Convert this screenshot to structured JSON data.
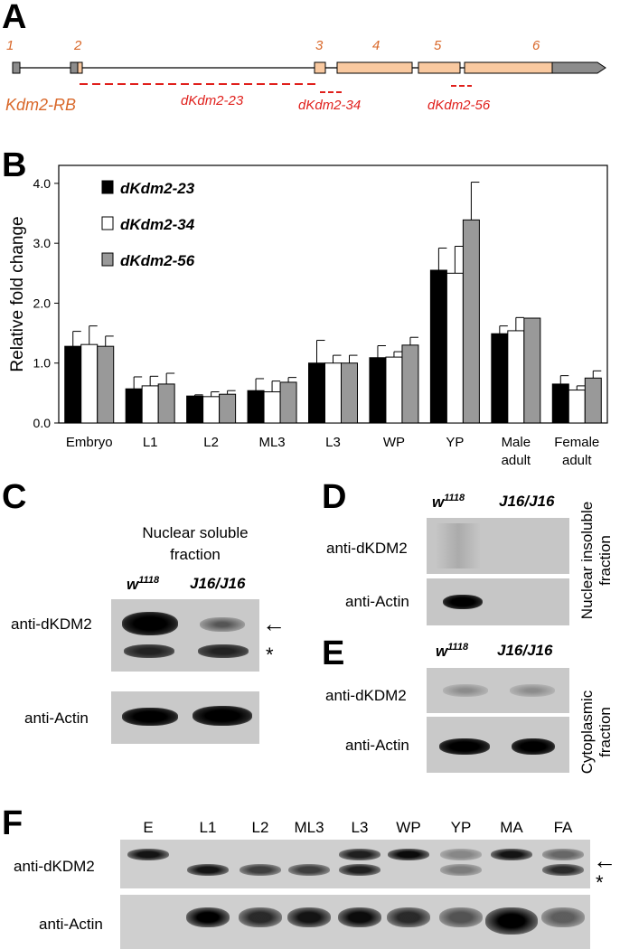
{
  "panels": {
    "A": "A",
    "B": "B",
    "C": "C",
    "D": "D",
    "E": "E",
    "F": "F"
  },
  "panelA": {
    "exon_numbers": [
      "1",
      "2",
      "3",
      "4",
      "5",
      "6"
    ],
    "transcript": "Kdm2-RB",
    "amplicons": [
      "dKdm2-23",
      "dKdm2-34",
      "dKdm2-56"
    ],
    "colors": {
      "exon_coding": "#f9c9a0",
      "exon_utr": "#8c8c8c",
      "amplicon": "#e0201c",
      "label": "#d9682a"
    }
  },
  "chart_data": {
    "type": "bar",
    "ylabel": "Relative fold change",
    "xlabel": "",
    "ylim": [
      0,
      4.3
    ],
    "yticks": [
      "0.0",
      "1.0",
      "2.0",
      "3.0",
      "4.0"
    ],
    "categories": [
      "Embryo",
      "L1",
      "L2",
      "ML3",
      "L3",
      "WP",
      "YP",
      "Male adult",
      "Female adult"
    ],
    "category_lines": [
      [
        "Embryo"
      ],
      [
        "L1"
      ],
      [
        "L2"
      ],
      [
        "ML3"
      ],
      [
        "L3"
      ],
      [
        "WP"
      ],
      [
        "YP"
      ],
      [
        "Male",
        "adult"
      ],
      [
        "Female",
        "adult"
      ]
    ],
    "legend_position": "top-left",
    "series": [
      {
        "name": "dKdm2-23",
        "color": "#000000",
        "values": [
          1.28,
          0.57,
          0.45,
          0.54,
          1.0,
          1.09,
          2.55,
          1.49,
          0.65
        ],
        "errors": [
          0.25,
          0.2,
          0.02,
          0.2,
          0.38,
          0.2,
          0.37,
          0.13,
          0.14
        ]
      },
      {
        "name": "dKdm2-34",
        "color": "#ffffff",
        "values": [
          1.31,
          0.62,
          0.44,
          0.52,
          1.0,
          1.1,
          2.5,
          1.54,
          0.55
        ],
        "errors": [
          0.31,
          0.16,
          0.08,
          0.18,
          0.13,
          0.09,
          0.45,
          0.22,
          0.07
        ]
      },
      {
        "name": "dKdm2-56",
        "color": "#999999",
        "values": [
          1.28,
          0.65,
          0.48,
          0.68,
          1.0,
          1.3,
          3.39,
          1.75,
          0.75
        ],
        "errors": [
          0.17,
          0.18,
          0.06,
          0.08,
          0.13,
          0.13,
          0.63,
          0.0,
          0.12
        ]
      }
    ]
  },
  "panelC": {
    "title_line1": "Nuclear soluble",
    "title_line2": "fraction",
    "lane1_base": "w",
    "lane1_sup": "1118",
    "lane2": "J16/J16",
    "row1": "anti-dKDM2",
    "row2": "anti-Actin",
    "arrow": "←",
    "asterisk": "*"
  },
  "panelD": {
    "lane1_base": "w",
    "lane1_sup": "1118",
    "lane2": "J16/J16",
    "row1": "anti-dKDM2",
    "row2": "anti-Actin",
    "side_line1": "Nuclear insoluble",
    "side_line2": "fraction"
  },
  "panelE": {
    "lane1_base": "w",
    "lane1_sup": "1118",
    "lane2": "J16/J16",
    "row1": "anti-dKDM2",
    "row2": "anti-Actin",
    "side_line1": "Cytoplasmic",
    "side_line2": "fraction"
  },
  "panelF": {
    "lanes": [
      "E",
      "L1",
      "L2",
      "ML3",
      "L3",
      "WP",
      "YP",
      "MA",
      "FA"
    ],
    "row1": "anti-dKDM2",
    "row2": "anti-Actin",
    "arrow": "←",
    "asterisk": "*"
  }
}
